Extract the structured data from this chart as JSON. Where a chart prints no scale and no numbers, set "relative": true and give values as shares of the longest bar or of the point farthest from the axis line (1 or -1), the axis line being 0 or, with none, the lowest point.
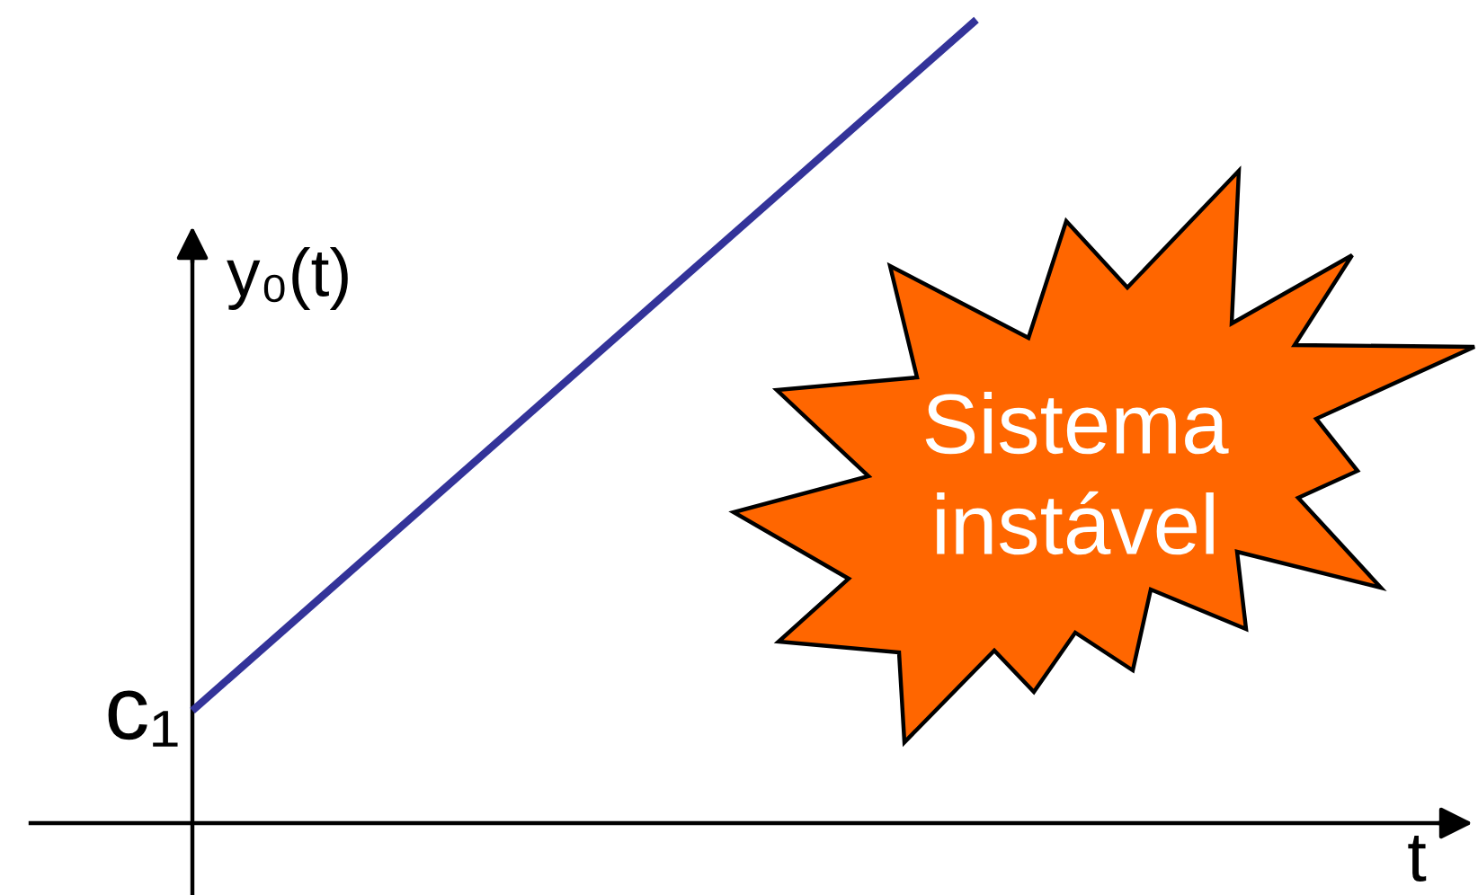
{
  "chart_data": {
    "type": "line",
    "xlabel": "t",
    "ylabel": "y₀(t)",
    "categories": [
      null,
      null
    ],
    "relative": true,
    "series": [
      {
        "color": "#333399",
        "values": [
          0.14,
          1
        ]
      }
    ],
    "annotations": [
      "Sistema\ninstável",
      "c₁"
    ]
  }
}
